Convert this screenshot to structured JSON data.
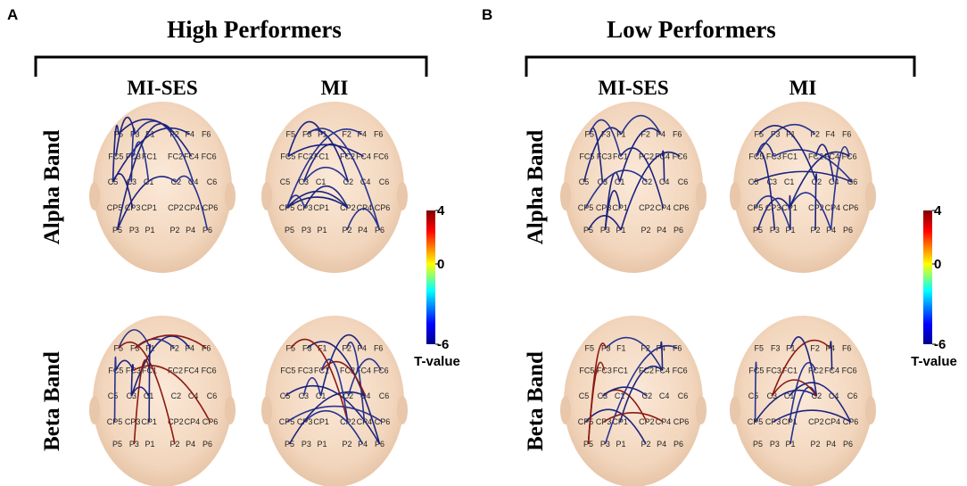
{
  "panels": [
    {
      "label": "A",
      "title": "High Performers",
      "columns": [
        "MI-SES",
        "MI"
      ],
      "rows": [
        "Alpha Band",
        "Beta Band"
      ],
      "colorbar": {
        "lim": [
          -6,
          4
        ],
        "ticks": [
          4,
          0,
          -6
        ],
        "label": "T-value"
      }
    },
    {
      "label": "B",
      "title": "Low Performers",
      "columns": [
        "MI-SES",
        "MI"
      ],
      "rows": [
        "Alpha Band",
        "Beta Band"
      ],
      "colorbar": {
        "lim": [
          -6,
          4
        ],
        "ticks": [
          4,
          0,
          -6
        ],
        "label": "T-value"
      }
    }
  ],
  "electrodes": [
    "F1",
    "F2",
    "F3",
    "F4",
    "F5",
    "F6",
    "FC1",
    "FC2",
    "FC3",
    "FC4",
    "FC5",
    "FC6",
    "C1",
    "C2",
    "C3",
    "C4",
    "C5",
    "C6",
    "CP1",
    "CP2",
    "CP3",
    "CP4",
    "CP5",
    "CP6",
    "P1",
    "P2",
    "P3",
    "P4",
    "P5",
    "P6"
  ]
}
